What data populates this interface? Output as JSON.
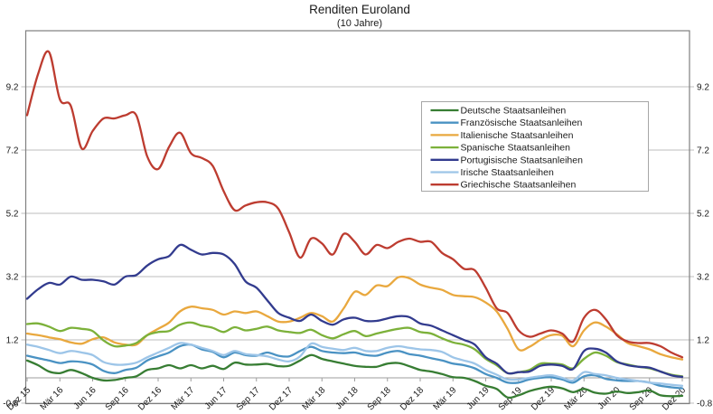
{
  "title": "Renditen Euroland",
  "subtitle": "(10 Jahre)",
  "axes": {
    "y_tick_labels": [
      "9.2",
      "7.2",
      "5.2",
      "3.2",
      "1.2",
      "-0.8"
    ],
    "y_tick_values": [
      9.2,
      7.2,
      5.2,
      3.2,
      1.2,
      -0.8
    ],
    "x_tick_labels": [
      "Dez 15",
      "Mär 16",
      "Jun 16",
      "Sep 16",
      "Dez 16",
      "Mär 17",
      "Jun 17",
      "Sep 17",
      "Dez 17",
      "Mär 18",
      "Jun 18",
      "Sep 18",
      "Dez 18",
      "Mär 19",
      "Jun 19",
      "Sep 19",
      "Dez 19",
      "Mär 20",
      "Jun 20",
      "Sep 20",
      "Dez 20"
    ]
  },
  "colors": {
    "grid": "#bdbdbd",
    "border": "#7f7f7f",
    "zero_axis": "#9e9e9e",
    "legend_border": "#a6a6a6"
  },
  "chart_data": {
    "type": "line",
    "title": "Renditen Euroland",
    "subtitle": "(10 Jahre)",
    "x_unit": "month",
    "x_start": "Dez 15",
    "x_end": "Dez 20",
    "x_tick_labels": [
      "Dez 15",
      "Mär 16",
      "Jun 16",
      "Sep 16",
      "Dez 16",
      "Mär 17",
      "Jun 17",
      "Sep 17",
      "Dez 17",
      "Mär 18",
      "Jun 18",
      "Sep 18",
      "Dez 18",
      "Mär 19",
      "Jun 19",
      "Sep 19",
      "Dez 19",
      "Mär 20",
      "Jun 20",
      "Sep 20",
      "Dez 20"
    ],
    "ylim": [
      -0.8,
      11.0
    ],
    "y_gridlines": [
      9.2,
      7.2,
      5.2,
      3.2,
      1.2,
      -0.8
    ],
    "zero_axis": true,
    "grid": true,
    "legend_position": "inside-upper-right",
    "series": [
      {
        "name": "Deutsche Staatsanleihen",
        "color": "#377d33",
        "values": [
          0.55,
          0.4,
          0.2,
          0.15,
          0.25,
          0.15,
          0.0,
          -0.08,
          -0.07,
          0.0,
          0.05,
          0.25,
          0.3,
          0.4,
          0.3,
          0.4,
          0.3,
          0.38,
          0.28,
          0.48,
          0.42,
          0.42,
          0.44,
          0.37,
          0.38,
          0.55,
          0.72,
          0.6,
          0.52,
          0.45,
          0.38,
          0.35,
          0.35,
          0.45,
          0.47,
          0.37,
          0.25,
          0.2,
          0.12,
          0.02,
          0.0,
          -0.1,
          -0.25,
          -0.35,
          -0.62,
          -0.55,
          -0.42,
          -0.33,
          -0.28,
          -0.33,
          -0.45,
          -0.35,
          -0.47,
          -0.5,
          -0.43,
          -0.48,
          -0.45,
          -0.4,
          -0.55,
          -0.58,
          -0.57
        ]
      },
      {
        "name": "Französische Staatsanleihen",
        "color": "#4a92c3",
        "values": [
          0.7,
          0.62,
          0.55,
          0.47,
          0.52,
          0.5,
          0.42,
          0.22,
          0.15,
          0.25,
          0.32,
          0.55,
          0.68,
          0.8,
          1.0,
          1.05,
          0.9,
          0.82,
          0.65,
          0.8,
          0.72,
          0.7,
          0.8,
          0.7,
          0.68,
          0.85,
          0.98,
          0.85,
          0.8,
          0.78,
          0.8,
          0.72,
          0.7,
          0.8,
          0.85,
          0.75,
          0.7,
          0.62,
          0.55,
          0.45,
          0.4,
          0.3,
          0.12,
          0.0,
          -0.15,
          -0.15,
          -0.05,
          0.0,
          0.02,
          -0.05,
          -0.15,
          0.05,
          0.08,
          -0.03,
          -0.08,
          -0.1,
          -0.1,
          -0.15,
          -0.25,
          -0.3,
          -0.33
        ]
      },
      {
        "name": "Italienische Staatsanleihen",
        "color": "#e9a83e",
        "values": [
          1.4,
          1.35,
          1.28,
          1.22,
          1.12,
          1.08,
          1.22,
          1.28,
          1.12,
          1.05,
          1.05,
          1.35,
          1.55,
          1.75,
          2.1,
          2.25,
          2.2,
          2.15,
          2.0,
          2.1,
          2.05,
          2.1,
          1.95,
          1.78,
          1.78,
          1.9,
          2.05,
          1.95,
          1.78,
          2.2,
          2.72,
          2.62,
          2.92,
          2.9,
          3.18,
          3.15,
          2.95,
          2.85,
          2.78,
          2.62,
          2.58,
          2.55,
          2.38,
          2.1,
          1.55,
          0.9,
          0.98,
          1.2,
          1.35,
          1.33,
          1.0,
          1.5,
          1.75,
          1.62,
          1.38,
          1.1,
          1.0,
          0.9,
          0.75,
          0.65,
          0.58
        ]
      },
      {
        "name": "Spanische Staatsanleihen",
        "color": "#7cb13a",
        "values": [
          1.7,
          1.72,
          1.62,
          1.48,
          1.58,
          1.55,
          1.48,
          1.18,
          1.0,
          1.02,
          1.1,
          1.35,
          1.45,
          1.48,
          1.68,
          1.75,
          1.65,
          1.58,
          1.45,
          1.6,
          1.5,
          1.55,
          1.62,
          1.5,
          1.45,
          1.42,
          1.52,
          1.35,
          1.25,
          1.38,
          1.48,
          1.32,
          1.4,
          1.48,
          1.55,
          1.58,
          1.45,
          1.4,
          1.25,
          1.12,
          1.05,
          0.9,
          0.6,
          0.4,
          0.15,
          0.18,
          0.25,
          0.45,
          0.45,
          0.42,
          0.3,
          0.6,
          0.8,
          0.7,
          0.5,
          0.42,
          0.35,
          0.3,
          0.2,
          0.1,
          0.05
        ]
      },
      {
        "name": "Portugisische Staatsanleihen",
        "color": "#323b8e",
        "values": [
          2.5,
          2.8,
          3.0,
          2.95,
          3.2,
          3.1,
          3.1,
          3.05,
          2.95,
          3.2,
          3.25,
          3.55,
          3.75,
          3.85,
          4.2,
          4.05,
          3.9,
          3.95,
          3.9,
          3.6,
          3.05,
          2.85,
          2.45,
          2.05,
          1.9,
          1.8,
          2.0,
          1.8,
          1.68,
          1.85,
          1.9,
          1.8,
          1.8,
          1.88,
          1.95,
          1.92,
          1.72,
          1.65,
          1.5,
          1.35,
          1.2,
          1.05,
          0.65,
          0.45,
          0.15,
          0.18,
          0.2,
          0.38,
          0.42,
          0.38,
          0.28,
          0.85,
          0.92,
          0.8,
          0.52,
          0.4,
          0.35,
          0.32,
          0.2,
          0.08,
          0.03
        ]
      },
      {
        "name": "Irische Staatsanleihen",
        "color": "#9dc5e8",
        "values": [
          1.05,
          0.98,
          0.88,
          0.78,
          0.85,
          0.8,
          0.72,
          0.5,
          0.42,
          0.42,
          0.48,
          0.65,
          0.8,
          0.95,
          1.1,
          1.05,
          0.95,
          0.85,
          0.72,
          0.85,
          0.75,
          0.72,
          0.68,
          0.58,
          0.52,
          0.68,
          1.08,
          0.98,
          0.92,
          0.88,
          0.95,
          0.85,
          0.85,
          0.95,
          1.0,
          0.95,
          0.9,
          0.88,
          0.82,
          0.65,
          0.55,
          0.45,
          0.25,
          0.1,
          -0.05,
          -0.05,
          0.0,
          0.05,
          0.08,
          0.0,
          -0.08,
          0.18,
          0.12,
          0.08,
          0.0,
          -0.05,
          -0.1,
          -0.15,
          -0.18,
          -0.22,
          -0.25
        ]
      },
      {
        "name": "Griechische Staatsanleihen",
        "color": "#bd3c30",
        "values": [
          8.3,
          9.6,
          10.3,
          8.8,
          8.6,
          7.25,
          7.8,
          8.2,
          8.2,
          8.3,
          8.3,
          7.0,
          6.6,
          7.3,
          7.75,
          7.1,
          6.95,
          6.7,
          5.9,
          5.3,
          5.45,
          5.55,
          5.55,
          5.35,
          4.6,
          3.8,
          4.4,
          4.25,
          3.9,
          4.55,
          4.3,
          3.9,
          4.2,
          4.1,
          4.3,
          4.4,
          4.3,
          4.3,
          3.95,
          3.75,
          3.45,
          3.4,
          2.85,
          2.2,
          2.05,
          1.5,
          1.3,
          1.4,
          1.5,
          1.4,
          1.15,
          1.9,
          2.15,
          1.85,
          1.35,
          1.15,
          1.1,
          1.1,
          1.0,
          0.8,
          0.65
        ]
      }
    ]
  }
}
